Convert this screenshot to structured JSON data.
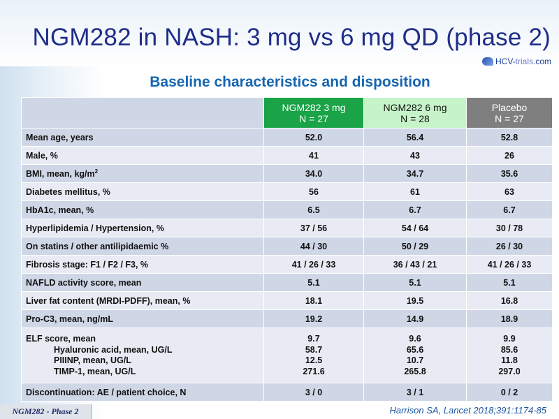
{
  "title": "NGM282 in NASH: 3 mg vs 6 mg QD (phase 2)",
  "logo": {
    "text_main": "HCV-",
    "text_accent": "trials",
    "text_end": ".com"
  },
  "subtitle": "Baseline characteristics and disposition",
  "table": {
    "headers": [
      {
        "line1": "NGM282 3 mg",
        "line2": "N = 27"
      },
      {
        "line1": "NGM282 6 mg",
        "line2": "N = 28"
      },
      {
        "line1": "Placebo",
        "line2": "N = 27"
      }
    ],
    "rows": [
      {
        "label": "Mean age, years",
        "v": [
          "52.0",
          "56.4",
          "52.8"
        ]
      },
      {
        "label": "Male, %",
        "v": [
          "41",
          "43",
          "26"
        ]
      },
      {
        "label": "BMI, mean, kg/m",
        "label_sup": "2",
        "v": [
          "34.0",
          "34.7",
          "35.6"
        ]
      },
      {
        "label": "Diabetes mellitus, %",
        "v": [
          "56",
          "61",
          "63"
        ]
      },
      {
        "label": "HbA1c, mean, %",
        "v": [
          "6.5",
          "6.7",
          "6.7"
        ]
      },
      {
        "label": "Hyperlipidemia / Hypertension, %",
        "v": [
          "37 / 56",
          "54 / 64",
          "30 / 78"
        ]
      },
      {
        "label": "On statins / other antilipidaemic  %",
        "v": [
          "44 / 30",
          "50 / 29",
          "26 / 30"
        ]
      },
      {
        "label": "Fibrosis stage: F1 / F2 / F3, %",
        "v": [
          "41 / 26 / 33",
          "36 / 43 / 21",
          "41 / 26 / 33"
        ]
      },
      {
        "label": "NAFLD activity score, mean",
        "v": [
          "5.1",
          "5.1",
          "5.1"
        ]
      },
      {
        "label": "Liver fat content (MRDI-PDFF), mean, %",
        "v": [
          "18.1",
          "19.5",
          "16.8"
        ]
      },
      {
        "label": "Pro-C3, mean, ng/mL",
        "v": [
          "19.2",
          "14.9",
          "18.9"
        ]
      }
    ],
    "elf": {
      "labels": [
        "ELF score, mean",
        "Hyaluronic acid, mean, UG/L",
        "PIIINP, mean, UG/L",
        "TIMP-1, mean, UG/L"
      ],
      "col1": [
        "9.7",
        "58.7",
        "12.5",
        "271.6"
      ],
      "col2": [
        "9.6",
        "65.6",
        "10.7",
        "265.8"
      ],
      "col3": [
        "9.9",
        "85.6",
        "11.8",
        "297.0"
      ]
    },
    "last_row": {
      "label": "Discontinuation: AE / patient choice, N",
      "v": [
        "3 / 0",
        "3 / 1",
        "0 / 2"
      ]
    }
  },
  "footer_tag": "NGM282 - Phase 2",
  "citation": "Harrison SA, Lancet 2018;391:1174-85",
  "colors": {
    "title": "#1f2d8a",
    "subtitle": "#1565b0",
    "header_3mg": "#1aa347",
    "header_6mg": "#c7f3c8",
    "header_placebo": "#7f7f7f"
  }
}
